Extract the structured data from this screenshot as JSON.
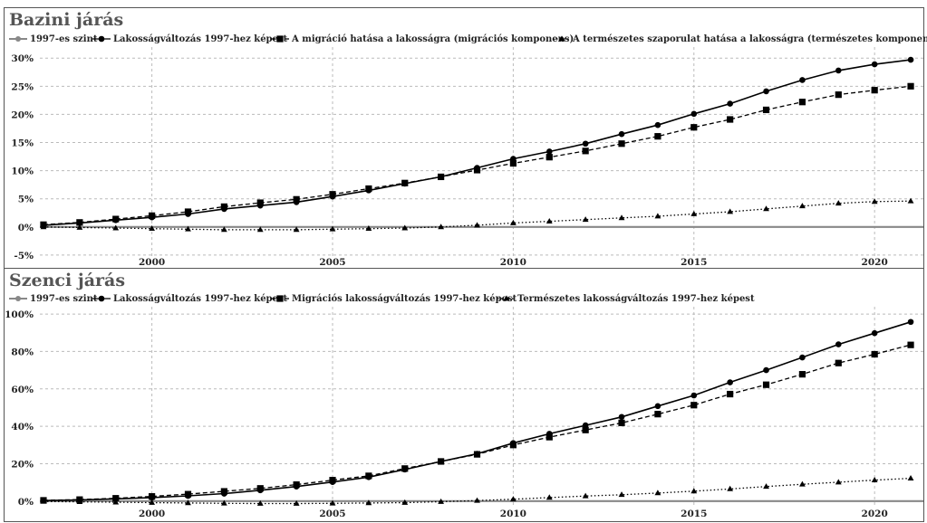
{
  "chart_data": [
    {
      "type": "line",
      "title": "Bazini járás",
      "x": [
        1997,
        1998,
        1999,
        2000,
        2001,
        2002,
        2003,
        2004,
        2005,
        2006,
        2007,
        2008,
        2009,
        2010,
        2011,
        2012,
        2013,
        2014,
        2015,
        2016,
        2017,
        2018,
        2019,
        2020,
        2021
      ],
      "x_ticks": [
        "2000",
        "2005",
        "2010",
        "2015",
        "2020"
      ],
      "y_ticks": [
        "30%",
        "25%",
        "20%",
        "15%",
        "10%",
        "5%",
        "0%",
        "-5%"
      ],
      "ylim": [
        -5.5,
        31
      ],
      "grid": true,
      "legend_position": "top",
      "series": [
        {
          "name": "1997-es szint",
          "color": "#888888",
          "style": "baseline",
          "values": [
            0,
            0,
            0,
            0,
            0,
            0,
            0,
            0,
            0,
            0,
            0,
            0,
            0,
            0,
            0,
            0,
            0,
            0,
            0,
            0,
            0,
            0,
            0,
            0,
            0
          ]
        },
        {
          "name": "Lakosságváltozás 1997-hez képest",
          "color": "#000000",
          "style": "solid-circle",
          "values": [
            0.3,
            0.7,
            1.2,
            1.7,
            2.3,
            3.2,
            3.8,
            4.4,
            5.4,
            6.5,
            7.7,
            8.9,
            10.5,
            12.1,
            13.4,
            14.8,
            16.5,
            18.1,
            20.1,
            21.9,
            24.1,
            26.1,
            27.8,
            28.9,
            29.7
          ]
        },
        {
          "name": "A migráció hatása a lakosságra (migrációs komponens)",
          "color": "#000000",
          "style": "dashed-square",
          "values": [
            0.4,
            0.8,
            1.4,
            2.0,
            2.7,
            3.6,
            4.3,
            4.9,
            5.8,
            6.8,
            7.8,
            8.9,
            10.1,
            11.3,
            12.4,
            13.5,
            14.8,
            16.1,
            17.7,
            19.1,
            20.8,
            22.2,
            23.5,
            24.3,
            25.0
          ]
        },
        {
          "name": "A természetes szaporulat hatása a lakosságra (természetes komponens)",
          "color": "#000000",
          "style": "dotted-triangle",
          "values": [
            0.0,
            -0.1,
            -0.2,
            -0.3,
            -0.4,
            -0.5,
            -0.5,
            -0.5,
            -0.4,
            -0.3,
            -0.2,
            0.0,
            0.3,
            0.7,
            1.0,
            1.3,
            1.6,
            1.9,
            2.3,
            2.7,
            3.2,
            3.7,
            4.2,
            4.5,
            4.6
          ]
        }
      ]
    },
    {
      "type": "line",
      "title": "Szenci járás",
      "x": [
        1997,
        1998,
        1999,
        2000,
        2001,
        2002,
        2003,
        2004,
        2005,
        2006,
        2007,
        2008,
        2009,
        2010,
        2011,
        2012,
        2013,
        2014,
        2015,
        2016,
        2017,
        2018,
        2019,
        2020,
        2021
      ],
      "x_ticks": [
        "2000",
        "2005",
        "2010",
        "2015",
        "2020"
      ],
      "y_ticks": [
        "100%",
        "80%",
        "60%",
        "40%",
        "20%",
        "0%"
      ],
      "ylim": [
        -3,
        101
      ],
      "grid": true,
      "legend_position": "top",
      "series": [
        {
          "name": "1997-es szint",
          "color": "#888888",
          "style": "baseline",
          "values": [
            0,
            0,
            0,
            0,
            0,
            0,
            0,
            0,
            0,
            0,
            0,
            0,
            0,
            0,
            0,
            0,
            0,
            0,
            0,
            0,
            0,
            0,
            0,
            0,
            0
          ]
        },
        {
          "name": "Lakosságváltozás 1997-hez képest",
          "color": "#000000",
          "style": "solid-circle",
          "values": [
            0.3,
            0.6,
            1.2,
            1.9,
            2.8,
            4.0,
            5.8,
            7.8,
            10.2,
            12.8,
            16.9,
            21.2,
            25.3,
            31.0,
            36.0,
            40.5,
            45.0,
            50.8,
            56.5,
            63.5,
            70.0,
            76.8,
            83.8,
            89.8,
            95.8
          ]
        },
        {
          "name": "Migrációs lakosságváltozás 1997-hez képest",
          "color": "#000000",
          "style": "dashed-square",
          "values": [
            0.4,
            0.8,
            1.5,
            2.5,
            3.7,
            5.2,
            6.8,
            8.8,
            11.2,
            13.5,
            17.4,
            21.2,
            25.0,
            30.0,
            34.2,
            38.0,
            41.8,
            46.5,
            51.3,
            57.2,
            62.2,
            67.8,
            73.8,
            78.5,
            83.5
          ]
        },
        {
          "name": "Természetes lakosságváltozás 1997-hez képest",
          "color": "#000000",
          "style": "dotted-triangle",
          "values": [
            -0.2,
            -0.4,
            -0.6,
            -0.8,
            -1.0,
            -1.2,
            -1.3,
            -1.3,
            -1.2,
            -1.0,
            -0.8,
            -0.3,
            0.3,
            1.0,
            1.9,
            2.7,
            3.4,
            4.3,
            5.3,
            6.5,
            7.8,
            9.0,
            10.1,
            11.2,
            12.2
          ]
        }
      ]
    }
  ]
}
